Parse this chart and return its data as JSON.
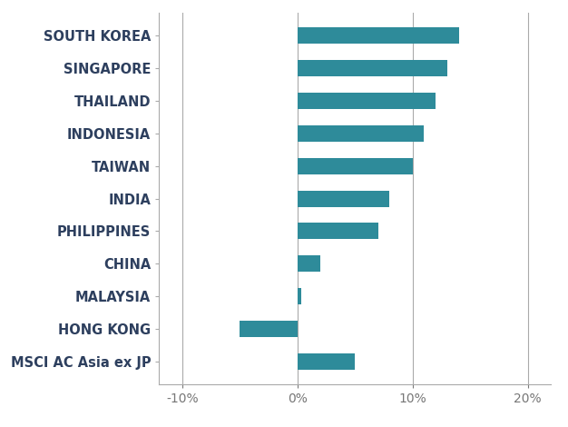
{
  "categories": [
    "MSCI AC Asia ex JP",
    "HONG KONG",
    "MALAYSIA",
    "CHINA",
    "PHILIPPINES",
    "INDIA",
    "TAIWAN",
    "INDONESIA",
    "THAILAND",
    "SINGAPORE",
    "SOUTH KOREA"
  ],
  "values": [
    5.0,
    -5.0,
    0.3,
    2.0,
    7.0,
    8.0,
    10.0,
    11.0,
    12.0,
    13.0,
    14.0
  ],
  "bar_color": "#2e8b9a",
  "label_color": "#2d3f5e",
  "axis_label_color": "#777777",
  "xlim": [
    -12,
    22
  ],
  "xticks": [
    -10,
    0,
    10,
    20
  ],
  "xtick_labels": [
    "-10%",
    "0%",
    "10%",
    "20%"
  ],
  "grid_color": "#aaaaaa",
  "background_color": "#ffffff",
  "bar_height": 0.5,
  "label_fontsize": 10.5,
  "tick_fontsize": 10
}
